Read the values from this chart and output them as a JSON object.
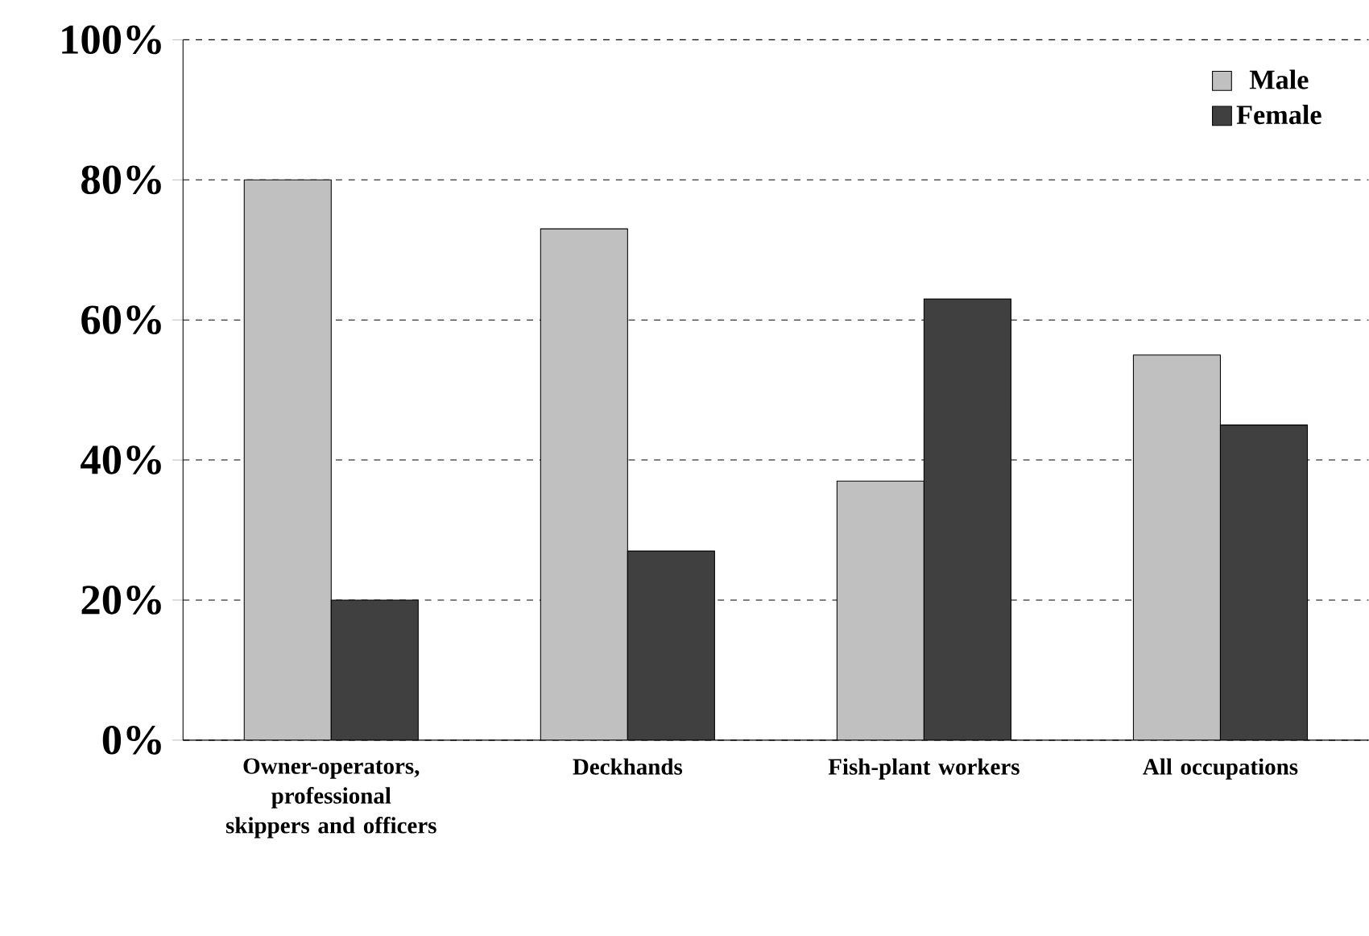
{
  "chart_data": {
    "type": "bar",
    "categories": [
      "Owner-operators, professional skippers and officers",
      "Deckhands",
      "Fish-plant workers",
      "All occupations"
    ],
    "series": [
      {
        "name": "Male",
        "color": "#c0c0c0",
        "values": [
          80,
          73,
          37,
          55
        ]
      },
      {
        "name": "Female",
        "color": "#404040",
        "values": [
          20,
          27,
          63,
          45
        ]
      }
    ],
    "ylim": [
      0,
      100
    ],
    "yticks": [
      {
        "value": 0,
        "label": "0%"
      },
      {
        "value": 20,
        "label": "20%"
      },
      {
        "value": 40,
        "label": "40%"
      },
      {
        "value": 60,
        "label": "60%"
      },
      {
        "value": 80,
        "label": "80%"
      },
      {
        "value": 100,
        "label": "100%"
      }
    ],
    "grid": "y",
    "legend": "top right"
  }
}
